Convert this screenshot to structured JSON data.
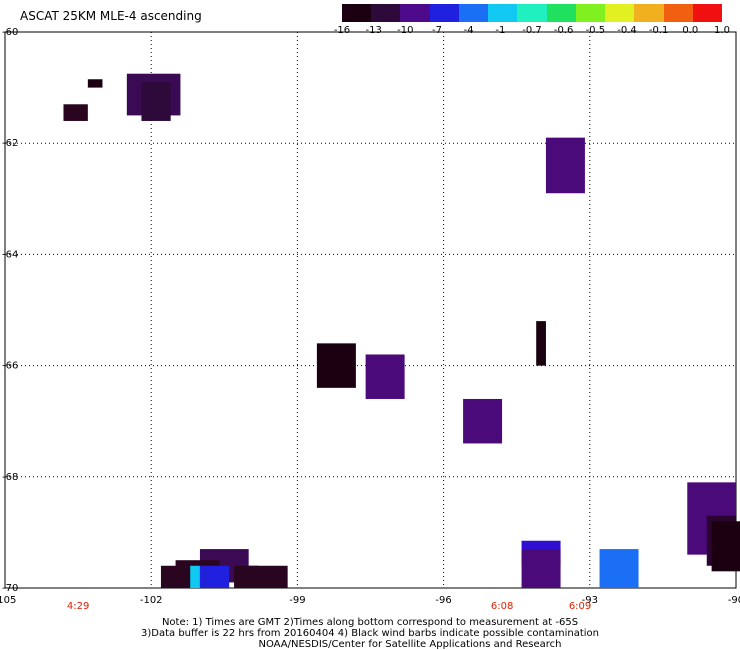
{
  "title": "ASCAT 25KM MLE-4 ascending",
  "colorbar": {
    "labels": [
      "-16",
      "-13",
      "-10",
      "-7",
      "-4",
      "-1",
      "-0.7",
      "-0.6",
      "-0.5",
      "-0.4",
      "-0.1",
      "0.0",
      "1.0"
    ],
    "colors": [
      "#1a0010",
      "#2d0a3a",
      "#4d0a8a",
      "#2020e0",
      "#1a6ff5",
      "#10c8f0",
      "#20f0c0",
      "#20e060",
      "#80f020",
      "#e0f020",
      "#f0b020",
      "#f06010",
      "#f01010"
    ]
  },
  "map": {
    "lon_range": [
      -105,
      -90
    ],
    "lat_range": [
      -70,
      -60
    ],
    "lon_ticks": [
      "-105",
      "-102",
      "-99",
      "-96",
      "-93",
      "-90"
    ],
    "lat_ticks": [
      "-60",
      "-62",
      "-64",
      "-66",
      "-68",
      "-70"
    ],
    "times": [
      {
        "label": "4:29",
        "lon": -103.5
      },
      {
        "label": "6:08",
        "lon": -94.8
      },
      {
        "label": "6:09",
        "lon": -93.2
      }
    ],
    "cells": [
      {
        "lon0": -103.8,
        "lon1": -103.3,
        "lat0": -61.6,
        "lat1": -61.3,
        "color": "#2a0520"
      },
      {
        "lon0": -103.3,
        "lon1": -103.0,
        "lat0": -61.0,
        "lat1": -60.85,
        "color": "#1a0010"
      },
      {
        "lon0": -102.5,
        "lon1": -101.4,
        "lat0": -61.5,
        "lat1": -60.75,
        "color": "#3a0a55"
      },
      {
        "lon0": -102.2,
        "lon1": -101.6,
        "lat0": -61.6,
        "lat1": -60.9,
        "color": "#2d0a3a"
      },
      {
        "lon0": -93.9,
        "lon1": -93.1,
        "lat0": -62.9,
        "lat1": -61.9,
        "color": "#4a0a7a"
      },
      {
        "lon0": -94.1,
        "lon1": -93.9,
        "lat0": -66.0,
        "lat1": -65.2,
        "color": "#1a0010"
      },
      {
        "lon0": -98.6,
        "lon1": -97.8,
        "lat0": -66.4,
        "lat1": -65.6,
        "color": "#1a0010"
      },
      {
        "lon0": -97.6,
        "lon1": -96.8,
        "lat0": -66.6,
        "lat1": -65.8,
        "color": "#4a0a7a"
      },
      {
        "lon0": -95.6,
        "lon1": -94.8,
        "lat0": -67.4,
        "lat1": -66.6,
        "color": "#4a0a7a"
      },
      {
        "lon0": -91.0,
        "lon1": -90.0,
        "lat0": -69.4,
        "lat1": -68.1,
        "color": "#4a0a7a"
      },
      {
        "lon0": -90.6,
        "lon1": -90.0,
        "lat0": -69.6,
        "lat1": -68.7,
        "color": "#2a0530"
      },
      {
        "lon0": -90.5,
        "lon1": -89.8,
        "lat0": -69.7,
        "lat1": -68.8,
        "color": "#1a0010"
      },
      {
        "lon0": -94.4,
        "lon1": -93.6,
        "lat0": -69.6,
        "lat1": -69.15,
        "color": "#3010d0"
      },
      {
        "lon0": -94.4,
        "lon1": -93.6,
        "lat0": -70.0,
        "lat1": -69.3,
        "color": "#4a0a7a"
      },
      {
        "lon0": -92.8,
        "lon1": -92.0,
        "lat0": -70.0,
        "lat1": -69.3,
        "color": "#1a6ff5"
      },
      {
        "lon0": -101.0,
        "lon1": -100.0,
        "lat0": -69.9,
        "lat1": -69.3,
        "color": "#3a0a55"
      },
      {
        "lon0": -101.5,
        "lon1": -100.6,
        "lat0": -70.0,
        "lat1": -69.5,
        "color": "#2a0520"
      },
      {
        "lon0": -101.2,
        "lon1": -101.0,
        "lat0": -70.0,
        "lat1": -69.6,
        "color": "#10c8f0"
      },
      {
        "lon0": -101.0,
        "lon1": -100.9,
        "lat0": -70.0,
        "lat1": -69.6,
        "color": "#2020e0"
      },
      {
        "lon0": -100.9,
        "lon1": -100.4,
        "lat0": -70.0,
        "lat1": -69.6,
        "color": "#2020e0"
      },
      {
        "lon0": -100.3,
        "lon1": -99.8,
        "lat0": -70.0,
        "lat1": -69.6,
        "color": "#2a0520"
      },
      {
        "lon0": -101.8,
        "lon1": -101.3,
        "lat0": -70.0,
        "lat1": -69.6,
        "color": "#2a0520"
      },
      {
        "lon0": -100.0,
        "lon1": -99.2,
        "lat0": -70.0,
        "lat1": -69.6,
        "color": "#2a0520"
      }
    ]
  },
  "notes": {
    "line1": "Note: 1) Times are GMT 2)Times along bottom correspond to measurement at -65S",
    "line2": "3)Data buffer is 22 hrs from 20160404 4) Black wind barbs indicate possible contamination",
    "line3": "NOAA/NESDIS/Center for Satellite Applications and Research"
  }
}
